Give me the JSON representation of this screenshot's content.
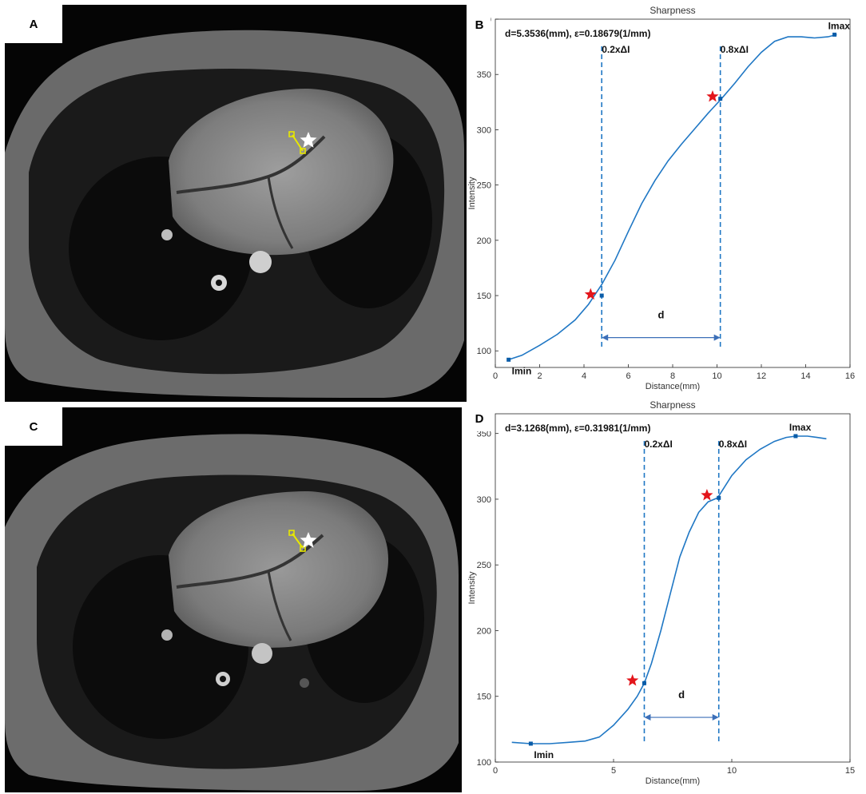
{
  "panels": {
    "a": {
      "letter": "A"
    },
    "b": {
      "letter": "B"
    },
    "c": {
      "letter": "C"
    },
    "d": {
      "letter": "D"
    }
  },
  "colors": {
    "curve": "#1f77c4",
    "marker": "#0a5ca8",
    "star_red": "#e3151b",
    "star_white": "#ffffff",
    "roi": "#e8e800"
  },
  "chart_data": [
    {
      "id": "B",
      "type": "line",
      "title": "Sharpness",
      "xlabel": "Distance(mm)",
      "ylabel": "Intensity",
      "xlim": [
        0,
        16
      ],
      "ylim": [
        85,
        400
      ],
      "xticks": [
        0,
        2,
        4,
        6,
        8,
        10,
        12,
        14,
        16
      ],
      "yticks": [
        100,
        150,
        200,
        250,
        300,
        350,
        400
      ],
      "annotation": "d=5.3536(mm), ε=0.18679(1/mm)",
      "x": [
        0.6,
        1.2,
        2.0,
        2.8,
        3.6,
        4.2,
        4.8,
        5.4,
        6.0,
        6.6,
        7.2,
        7.8,
        8.4,
        9.0,
        9.6,
        10.2,
        10.8,
        11.4,
        12.0,
        12.6,
        13.2,
        13.8,
        14.4,
        15.0,
        15.4
      ],
      "values": [
        92,
        96,
        105,
        115,
        128,
        142,
        160,
        182,
        208,
        233,
        254,
        272,
        287,
        301,
        315,
        328,
        342,
        357,
        370,
        380,
        384,
        384,
        383,
        384,
        386
      ],
      "markers": [
        {
          "label": "Imin",
          "x": 0.6,
          "y": 92
        },
        {
          "label": "Imax",
          "x": 15.3,
          "y": 386
        }
      ],
      "threshold_lines": [
        {
          "label": "0.2xΔI",
          "x": 4.8,
          "y": 150
        },
        {
          "label": "0.8xΔI",
          "x": 10.15,
          "y": 328
        }
      ],
      "distance_label": "d",
      "distance_arrow_y": 112,
      "stars": [
        {
          "x": 4.3,
          "y": 151
        },
        {
          "x": 9.8,
          "y": 330
        }
      ]
    },
    {
      "id": "D",
      "type": "line",
      "title": "Sharpness",
      "xlabel": "Distance(mm)",
      "ylabel": "Intensity",
      "xlim": [
        0,
        15
      ],
      "ylim": [
        100,
        365
      ],
      "xticks": [
        0,
        5,
        10,
        15
      ],
      "yticks": [
        100,
        150,
        200,
        250,
        300,
        350
      ],
      "annotation": "d=3.1268(mm), ε=0.31981(1/mm)",
      "x": [
        0.7,
        1.5,
        2.3,
        3.1,
        3.8,
        4.4,
        5.0,
        5.6,
        6.0,
        6.3,
        6.6,
        7.0,
        7.4,
        7.8,
        8.2,
        8.6,
        9.0,
        9.4,
        10.0,
        10.6,
        11.2,
        11.8,
        12.3,
        12.7,
        13.2,
        13.6,
        14.0
      ],
      "values": [
        115,
        114,
        114,
        115,
        116,
        119,
        128,
        140,
        150,
        160,
        175,
        200,
        228,
        256,
        275,
        290,
        298,
        301,
        318,
        330,
        338,
        344,
        347,
        348,
        348,
        347,
        346
      ],
      "markers": [
        {
          "label": "Imin",
          "x": 1.5,
          "y": 114
        },
        {
          "label": "Imax",
          "x": 12.7,
          "y": 348
        }
      ],
      "threshold_lines": [
        {
          "label": "0.2xΔI",
          "x": 6.3,
          "y": 160
        },
        {
          "label": "0.8xΔI",
          "x": 9.45,
          "y": 301
        }
      ],
      "distance_label": "d",
      "distance_arrow_y": 134,
      "stars": [
        {
          "x": 5.8,
          "y": 162
        },
        {
          "x": 8.95,
          "y": 303
        }
      ]
    }
  ]
}
